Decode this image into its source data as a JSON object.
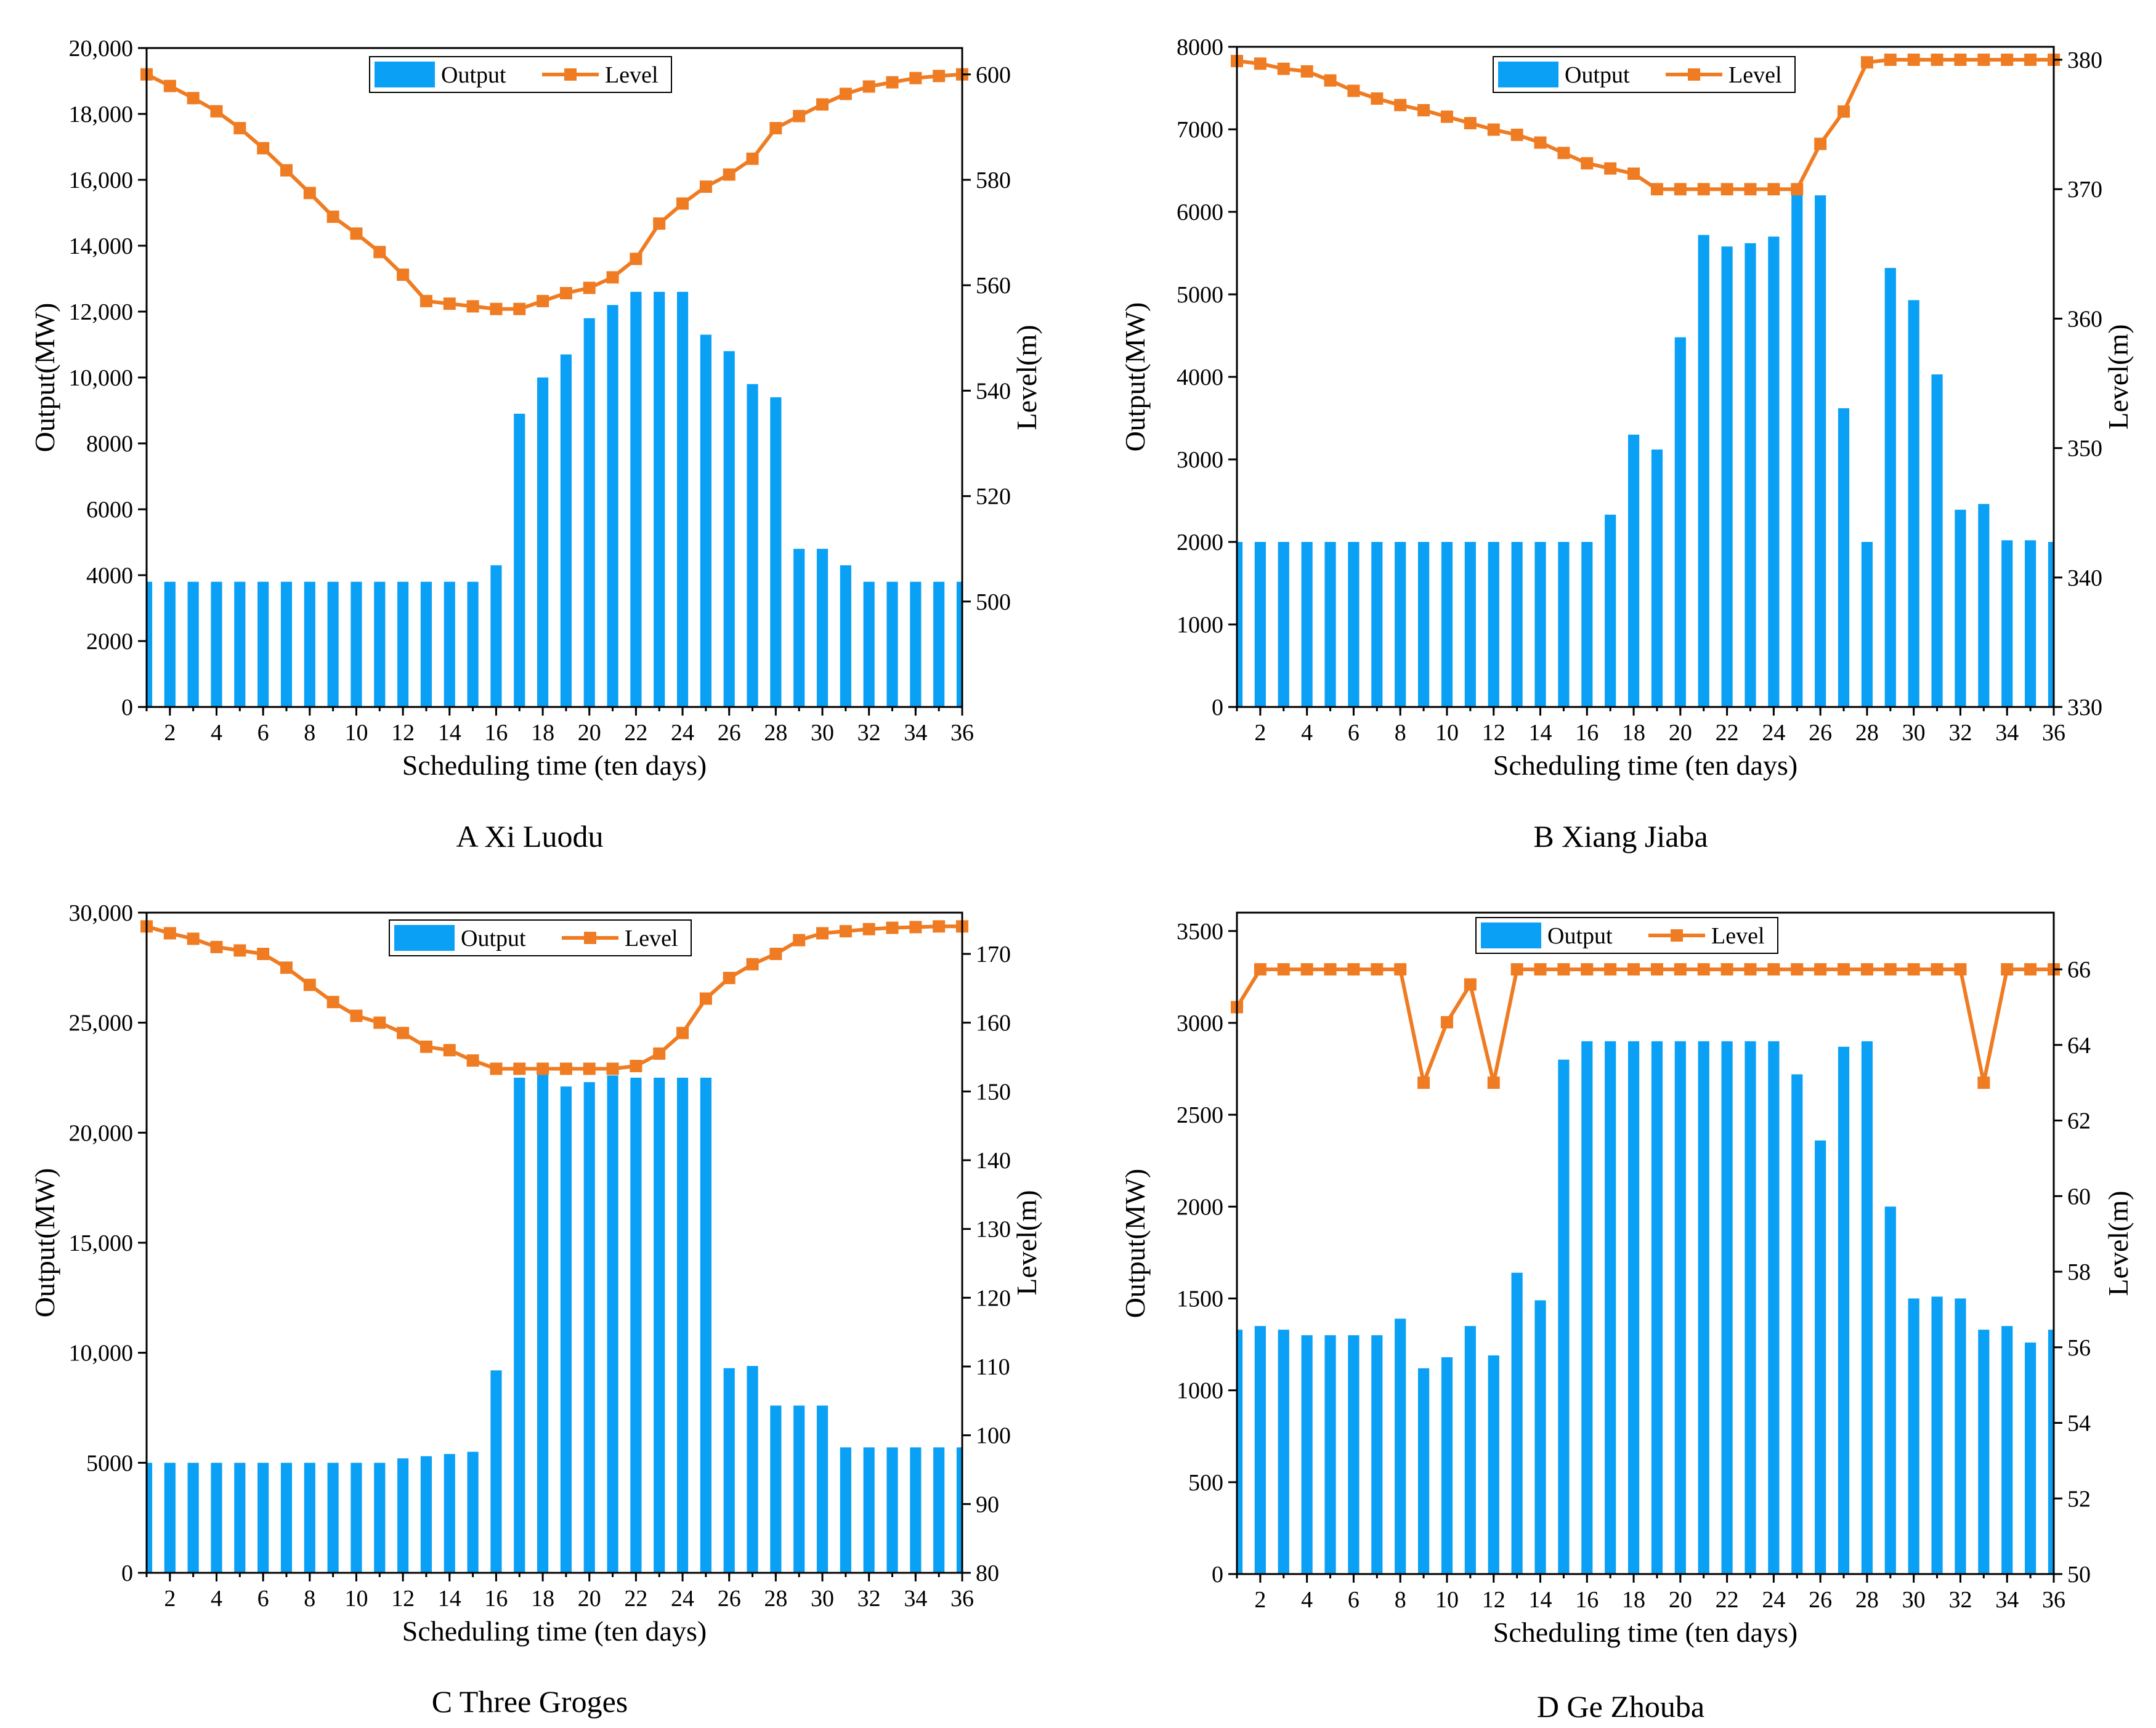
{
  "chart_data": [
    {
      "type": "bar+line",
      "caption": "A Xi Luodu",
      "xlabel": "Scheduling time (ten days)",
      "ylabel": "Output(MW)",
      "y2label": "Level(m)",
      "xlim": [
        1,
        36
      ],
      "xticks": [
        "2",
        "4",
        "6",
        "8",
        "10",
        "12",
        "14",
        "16",
        "18",
        "20",
        "22",
        "24",
        "26",
        "28",
        "30",
        "32",
        "34",
        "36"
      ],
      "ylim": [
        0,
        20000
      ],
      "yticks": [
        "0",
        "2000",
        "4000",
        "6000",
        "8000",
        "10,000",
        "12,000",
        "14,000",
        "16,000",
        "18,000",
        "20,000"
      ],
      "y2lim": [
        480,
        605
      ],
      "y2ticks": [
        "500",
        "520",
        "540",
        "560",
        "580",
        "600"
      ],
      "legend": [
        "Output",
        "Level"
      ],
      "x": [
        1,
        2,
        3,
        4,
        5,
        6,
        7,
        8,
        9,
        10,
        11,
        12,
        13,
        14,
        15,
        16,
        17,
        18,
        19,
        20,
        21,
        22,
        23,
        24,
        25,
        26,
        27,
        28,
        29,
        30,
        31,
        32,
        33,
        34,
        35,
        36
      ],
      "series": [
        {
          "name": "Output",
          "axis": "left",
          "kind": "bar",
          "values": [
            3800,
            3800,
            3800,
            3800,
            3800,
            3800,
            3800,
            3800,
            3800,
            3800,
            3800,
            3800,
            3800,
            3800,
            3800,
            4300,
            8900,
            10000,
            10700,
            11800,
            12200,
            12600,
            12600,
            12600,
            11300,
            10800,
            9800,
            9400,
            4800,
            4800,
            4300,
            3800,
            3800,
            3800,
            3800,
            3800
          ]
        },
        {
          "name": "Level",
          "axis": "right",
          "kind": "line",
          "values": [
            600,
            597.8,
            595.5,
            593,
            589.8,
            586,
            581.8,
            577.5,
            573,
            569.8,
            566.3,
            562,
            557,
            556.5,
            556,
            555.5,
            555.5,
            557,
            558.5,
            559.5,
            561.5,
            565,
            571.7,
            575.5,
            578.7,
            581,
            584,
            589.8,
            592.1,
            594.3,
            596.3,
            597.7,
            598.5,
            599.3,
            599.7,
            600
          ]
        }
      ],
      "colors": {
        "bar": "#0aa0f5",
        "line": "#ef7c22"
      }
    },
    {
      "type": "bar+line",
      "caption": "B Xiang Jiaba",
      "xlabel": "Scheduling time (ten days)",
      "ylabel": "Output(MW)",
      "y2label": "Level(m)",
      "xlim": [
        1,
        36
      ],
      "xticks": [
        "2",
        "4",
        "6",
        "8",
        "10",
        "12",
        "14",
        "16",
        "18",
        "20",
        "22",
        "24",
        "26",
        "28",
        "30",
        "32",
        "34",
        "36"
      ],
      "ylim": [
        0,
        8000
      ],
      "yticks": [
        "0",
        "1000",
        "2000",
        "3000",
        "4000",
        "5000",
        "6000",
        "7000",
        "8000"
      ],
      "y2lim": [
        330,
        381
      ],
      "y2ticks": [
        "330",
        "340",
        "350",
        "360",
        "370",
        "380"
      ],
      "legend": [
        "Output",
        "Level"
      ],
      "x": [
        1,
        2,
        3,
        4,
        5,
        6,
        7,
        8,
        9,
        10,
        11,
        12,
        13,
        14,
        15,
        16,
        17,
        18,
        19,
        20,
        21,
        22,
        23,
        24,
        25,
        26,
        27,
        28,
        29,
        30,
        31,
        32,
        33,
        34,
        35,
        36
      ],
      "series": [
        {
          "name": "Output",
          "axis": "left",
          "kind": "bar",
          "values": [
            2000,
            2000,
            2000,
            2000,
            2000,
            2000,
            2000,
            2000,
            2000,
            2000,
            2000,
            2000,
            2000,
            2000,
            2000,
            2000,
            2330,
            3300,
            3120,
            4480,
            5720,
            5580,
            5620,
            5700,
            6250,
            6200,
            3620,
            2000,
            5320,
            4930,
            4030,
            2390,
            2460,
            2020,
            2020,
            2000
          ]
        },
        {
          "name": "Level",
          "axis": "right",
          "kind": "line",
          "values": [
            379.9,
            379.7,
            379.3,
            379.1,
            378.4,
            377.6,
            377,
            376.5,
            376.1,
            375.6,
            375.1,
            374.6,
            374.2,
            373.6,
            372.8,
            372,
            371.6,
            371.2,
            370,
            370,
            370,
            370,
            370,
            370,
            370,
            373.5,
            376,
            379.8,
            380,
            380,
            380,
            380,
            380,
            380,
            380,
            380
          ]
        }
      ],
      "colors": {
        "bar": "#0aa0f5",
        "line": "#ef7c22"
      }
    },
    {
      "type": "bar+line",
      "caption": "C Three Groges",
      "xlabel": "Scheduling time (ten days)",
      "ylabel": "Output(MW)",
      "y2label": "Level(m)",
      "xlim": [
        1,
        36
      ],
      "xticks": [
        "2",
        "4",
        "6",
        "8",
        "10",
        "12",
        "14",
        "16",
        "18",
        "20",
        "22",
        "24",
        "26",
        "28",
        "30",
        "32",
        "34",
        "36"
      ],
      "ylim": [
        0,
        30000
      ],
      "yticks": [
        "0",
        "5000",
        "10,000",
        "15,000",
        "20,000",
        "25,000",
        "30,000"
      ],
      "y2lim": [
        80,
        176
      ],
      "y2ticks": [
        "80",
        "90",
        "100",
        "110",
        "120",
        "130",
        "140",
        "150",
        "160",
        "170"
      ],
      "legend": [
        "Output",
        "Level"
      ],
      "x": [
        1,
        2,
        3,
        4,
        5,
        6,
        7,
        8,
        9,
        10,
        11,
        12,
        13,
        14,
        15,
        16,
        17,
        18,
        19,
        20,
        21,
        22,
        23,
        24,
        25,
        26,
        27,
        28,
        29,
        30,
        31,
        32,
        33,
        34,
        35,
        36
      ],
      "series": [
        {
          "name": "Output",
          "axis": "left",
          "kind": "bar",
          "values": [
            5000,
            5000,
            5000,
            5000,
            5000,
            5000,
            5000,
            5000,
            5000,
            5000,
            5000,
            5200,
            5300,
            5400,
            5500,
            9200,
            22500,
            22700,
            22100,
            22300,
            22600,
            22500,
            22500,
            22500,
            22500,
            9300,
            9400,
            7600,
            7600,
            7600,
            5700,
            5700,
            5700,
            5700,
            5700,
            5700
          ]
        },
        {
          "name": "Level",
          "axis": "right",
          "kind": "line",
          "values": [
            174,
            173,
            172.2,
            171,
            170.5,
            170,
            168,
            165.5,
            163,
            161,
            160,
            158.5,
            156.5,
            156,
            154.5,
            153.3,
            153.3,
            153.3,
            153.3,
            153.3,
            153.3,
            153.7,
            155.5,
            158.5,
            163.5,
            166.5,
            168.5,
            170,
            172,
            173,
            173.3,
            173.6,
            173.8,
            173.9,
            174,
            174
          ]
        }
      ],
      "colors": {
        "bar": "#0aa0f5",
        "line": "#ef7c22"
      }
    },
    {
      "type": "bar+line",
      "caption": "D Ge Zhouba",
      "xlabel": "Scheduling time (ten days)",
      "ylabel": "Output(MW)",
      "y2label": "Level(m)",
      "xlim": [
        1,
        36
      ],
      "xticks": [
        "2",
        "4",
        "6",
        "8",
        "10",
        "12",
        "14",
        "16",
        "18",
        "20",
        "22",
        "24",
        "26",
        "28",
        "30",
        "32",
        "34",
        "36"
      ],
      "ylim": [
        0,
        3600
      ],
      "yticks": [
        "0",
        "500",
        "1000",
        "1500",
        "2000",
        "2500",
        "3000",
        "3500"
      ],
      "y2lim": [
        50,
        67.5
      ],
      "y2ticks": [
        "50",
        "52",
        "54",
        "56",
        "58",
        "60",
        "62",
        "64",
        "66"
      ],
      "legend": [
        "Output",
        "Level"
      ],
      "x": [
        1,
        2,
        3,
        4,
        5,
        6,
        7,
        8,
        9,
        10,
        11,
        12,
        13,
        14,
        15,
        16,
        17,
        18,
        19,
        20,
        21,
        22,
        23,
        24,
        25,
        26,
        27,
        28,
        29,
        30,
        31,
        32,
        33,
        34,
        35,
        36
      ],
      "series": [
        {
          "name": "Output",
          "axis": "left",
          "kind": "bar",
          "values": [
            1330,
            1350,
            1330,
            1300,
            1300,
            1300,
            1300,
            1390,
            1120,
            1180,
            1350,
            1190,
            1640,
            1490,
            2800,
            2900,
            2900,
            2900,
            2900,
            2900,
            2900,
            2900,
            2900,
            2900,
            2720,
            2360,
            2870,
            2900,
            2000,
            1500,
            1510,
            1500,
            1330,
            1350,
            1260,
            1330
          ]
        },
        {
          "name": "Level",
          "axis": "right",
          "kind": "line",
          "values": [
            65,
            66,
            66,
            66,
            66,
            66,
            66,
            66,
            63,
            64.6,
            65.6,
            63,
            66,
            66,
            66,
            66,
            66,
            66,
            66,
            66,
            66,
            66,
            66,
            66,
            66,
            66,
            66,
            66,
            66,
            66,
            66,
            66,
            63,
            66,
            66,
            66
          ]
        }
      ],
      "colors": {
        "bar": "#0aa0f5",
        "line": "#ef7c22"
      }
    }
  ]
}
